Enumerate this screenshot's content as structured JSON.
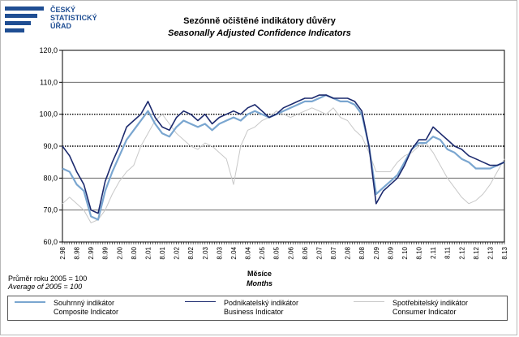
{
  "header": {
    "logo_lines": [
      "ČESKÝ",
      "STATISTICKÝ",
      "ÚŘAD"
    ],
    "title": "Sezónně očištěné indikátory důvěry",
    "subtitle": "Seasonally Adjusted Confidence Indicators"
  },
  "note": {
    "cz": "Průměr roku 2005 = 100",
    "en": "Average of 2005 = 100"
  },
  "axis": {
    "xlabel_cz": "Měsíce",
    "xlabel_en": "Months"
  },
  "colors": {
    "composite": "#7aa6d0",
    "business": "#1c2a6e",
    "consumer": "#c8c8c8",
    "logo": "#1f4e93"
  },
  "legend": [
    {
      "cz": "Souhrnný indikátor",
      "en": "Composite Indicator"
    },
    {
      "cz": "Podnikatelský indikátor",
      "en": "Business Indicator"
    },
    {
      "cz": "Spotřebitelský indikátor",
      "en": "Consumer Indicator"
    }
  ],
  "chart_data": {
    "type": "line",
    "ylim": [
      60,
      120
    ],
    "yticks": [
      "60,0",
      "70,0",
      "80,0",
      "90,0",
      "100,0",
      "110,0",
      "120,0"
    ],
    "x_start": "2.98",
    "x_end": "8.13",
    "xtick_labels": [
      "2.98",
      "8.98",
      "2.99",
      "8.99",
      "2.00",
      "8.00",
      "2.01",
      "8.01",
      "2.02",
      "8.02",
      "2.03",
      "8.03",
      "2.04",
      "8.04",
      "2.05",
      "8.05",
      "2.06",
      "8.06",
      "2.07",
      "8.07",
      "2.08",
      "8.08",
      "2.09",
      "8.09",
      "2.10",
      "8.10",
      "2.11",
      "8.11",
      "2.12",
      "8.12",
      "2.13",
      "8.13"
    ],
    "dotted_gridlines": [
      90,
      100
    ],
    "series": [
      {
        "name": "Composite Indicator",
        "key": "composite",
        "points": [
          [
            "2.98",
            83
          ],
          [
            "5.98",
            82
          ],
          [
            "8.98",
            78
          ],
          [
            "11.98",
            76
          ],
          [
            "2.99",
            68
          ],
          [
            "5.99",
            67
          ],
          [
            "8.99",
            76
          ],
          [
            "11.99",
            82
          ],
          [
            "2.00",
            87
          ],
          [
            "5.00",
            92
          ],
          [
            "8.00",
            95
          ],
          [
            "11.00",
            98
          ],
          [
            "2.01",
            101
          ],
          [
            "5.01",
            97
          ],
          [
            "8.01",
            94
          ],
          [
            "11.01",
            93
          ],
          [
            "2.02",
            96
          ],
          [
            "5.02",
            98
          ],
          [
            "8.02",
            97
          ],
          [
            "11.02",
            96
          ],
          [
            "2.03",
            97
          ],
          [
            "5.03",
            95
          ],
          [
            "8.03",
            97
          ],
          [
            "11.03",
            98
          ],
          [
            "2.04",
            99
          ],
          [
            "5.04",
            98
          ],
          [
            "8.04",
            100
          ],
          [
            "11.04",
            101
          ],
          [
            "2.05",
            100
          ],
          [
            "5.05",
            99
          ],
          [
            "8.05",
            100
          ],
          [
            "11.05",
            101
          ],
          [
            "2.06",
            102
          ],
          [
            "5.06",
            103
          ],
          [
            "8.06",
            104
          ],
          [
            "11.06",
            104
          ],
          [
            "2.07",
            105
          ],
          [
            "5.07",
            106
          ],
          [
            "8.07",
            105
          ],
          [
            "11.07",
            104
          ],
          [
            "2.08",
            104
          ],
          [
            "5.08",
            103
          ],
          [
            "8.08",
            100
          ],
          [
            "11.08",
            90
          ],
          [
            "2.09",
            75
          ],
          [
            "5.09",
            77
          ],
          [
            "8.09",
            79
          ],
          [
            "11.09",
            81
          ],
          [
            "2.10",
            85
          ],
          [
            "5.10",
            89
          ],
          [
            "8.10",
            91
          ],
          [
            "11.10",
            91
          ],
          [
            "2.11",
            93
          ],
          [
            "5.11",
            92
          ],
          [
            "8.11",
            89
          ],
          [
            "11.11",
            88
          ],
          [
            "2.12",
            86
          ],
          [
            "5.12",
            85
          ],
          [
            "8.12",
            83
          ],
          [
            "11.12",
            83
          ],
          [
            "2.13",
            83
          ],
          [
            "5.13",
            84
          ],
          [
            "8.13",
            85
          ]
        ]
      },
      {
        "name": "Business Indicator",
        "key": "business",
        "points": [
          [
            "2.98",
            90
          ],
          [
            "5.98",
            87
          ],
          [
            "8.98",
            82
          ],
          [
            "11.98",
            78
          ],
          [
            "2.99",
            70
          ],
          [
            "5.99",
            69
          ],
          [
            "8.99",
            79
          ],
          [
            "11.99",
            85
          ],
          [
            "2.00",
            90
          ],
          [
            "5.00",
            96
          ],
          [
            "8.00",
            98
          ],
          [
            "11.00",
            100
          ],
          [
            "2.01",
            104
          ],
          [
            "5.01",
            99
          ],
          [
            "8.01",
            96
          ],
          [
            "11.01",
            95
          ],
          [
            "2.02",
            99
          ],
          [
            "5.02",
            101
          ],
          [
            "8.02",
            100
          ],
          [
            "11.02",
            98
          ],
          [
            "2.03",
            100
          ],
          [
            "5.03",
            97
          ],
          [
            "8.03",
            99
          ],
          [
            "11.03",
            100
          ],
          [
            "2.04",
            101
          ],
          [
            "5.04",
            100
          ],
          [
            "8.04",
            102
          ],
          [
            "11.04",
            103
          ],
          [
            "2.05",
            101
          ],
          [
            "5.05",
            99
          ],
          [
            "8.05",
            100
          ],
          [
            "11.05",
            102
          ],
          [
            "2.06",
            103
          ],
          [
            "5.06",
            104
          ],
          [
            "8.06",
            105
          ],
          [
            "11.06",
            105
          ],
          [
            "2.07",
            106
          ],
          [
            "5.07",
            106
          ],
          [
            "8.07",
            105
          ],
          [
            "11.07",
            105
          ],
          [
            "2.08",
            105
          ],
          [
            "5.08",
            104
          ],
          [
            "8.08",
            101
          ],
          [
            "11.08",
            90
          ],
          [
            "2.09",
            72
          ],
          [
            "5.09",
            76
          ],
          [
            "8.09",
            78
          ],
          [
            "11.09",
            80
          ],
          [
            "2.10",
            84
          ],
          [
            "5.10",
            89
          ],
          [
            "8.10",
            92
          ],
          [
            "11.10",
            92
          ],
          [
            "2.11",
            96
          ],
          [
            "5.11",
            94
          ],
          [
            "8.11",
            92
          ],
          [
            "11.11",
            90
          ],
          [
            "2.12",
            89
          ],
          [
            "5.12",
            87
          ],
          [
            "8.12",
            86
          ],
          [
            "11.12",
            85
          ],
          [
            "2.13",
            84
          ],
          [
            "5.13",
            84
          ],
          [
            "8.13",
            85
          ]
        ]
      },
      {
        "name": "Consumer Indicator",
        "key": "consumer",
        "points": [
          [
            "2.98",
            72
          ],
          [
            "5.98",
            74
          ],
          [
            "8.98",
            72
          ],
          [
            "11.98",
            70
          ],
          [
            "2.99",
            66
          ],
          [
            "5.99",
            67
          ],
          [
            "8.99",
            70
          ],
          [
            "11.99",
            75
          ],
          [
            "2.00",
            79
          ],
          [
            "5.00",
            82
          ],
          [
            "8.00",
            84
          ],
          [
            "11.00",
            90
          ],
          [
            "2.01",
            94
          ],
          [
            "5.01",
            98
          ],
          [
            "8.01",
            100
          ],
          [
            "11.01",
            97
          ],
          [
            "2.02",
            94
          ],
          [
            "5.02",
            92
          ],
          [
            "8.02",
            90
          ],
          [
            "11.02",
            89
          ],
          [
            "2.03",
            91
          ],
          [
            "5.03",
            90
          ],
          [
            "8.03",
            88
          ],
          [
            "11.03",
            86
          ],
          [
            "2.04",
            78
          ],
          [
            "5.04",
            90
          ],
          [
            "8.04",
            95
          ],
          [
            "11.04",
            96
          ],
          [
            "2.05",
            98
          ],
          [
            "5.05",
            99
          ],
          [
            "8.05",
            101
          ],
          [
            "11.05",
            100
          ],
          [
            "2.06",
            99
          ],
          [
            "5.06",
            100
          ],
          [
            "8.06",
            101
          ],
          [
            "11.06",
            102
          ],
          [
            "2.07",
            101
          ],
          [
            "5.07",
            100
          ],
          [
            "8.07",
            102
          ],
          [
            "11.07",
            99
          ],
          [
            "2.08",
            98
          ],
          [
            "5.08",
            95
          ],
          [
            "8.08",
            93
          ],
          [
            "11.08",
            88
          ],
          [
            "2.09",
            82
          ],
          [
            "5.09",
            82
          ],
          [
            "8.09",
            82
          ],
          [
            "11.09",
            85
          ],
          [
            "2.10",
            87
          ],
          [
            "5.10",
            88
          ],
          [
            "8.10",
            90
          ],
          [
            "11.10",
            91
          ],
          [
            "2.11",
            88
          ],
          [
            "5.11",
            84
          ],
          [
            "8.11",
            80
          ],
          [
            "11.11",
            77
          ],
          [
            "2.12",
            74
          ],
          [
            "5.12",
            72
          ],
          [
            "8.12",
            73
          ],
          [
            "11.12",
            75
          ],
          [
            "2.13",
            78
          ],
          [
            "5.13",
            82
          ],
          [
            "8.13",
            86
          ]
        ]
      }
    ]
  }
}
